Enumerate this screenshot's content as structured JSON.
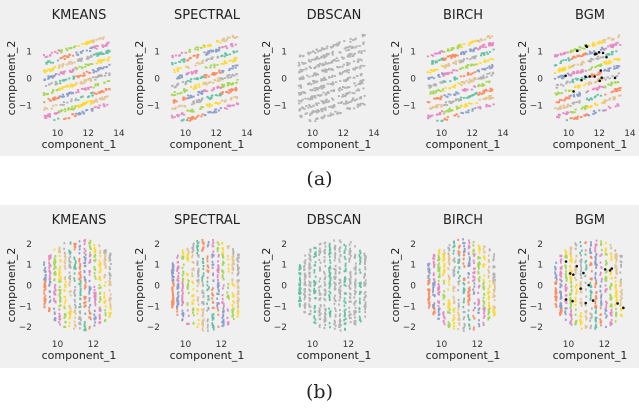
{
  "figure": {
    "captions": [
      "(a)",
      "(b)"
    ]
  },
  "chart_data": [
    {
      "type": "scatter",
      "row": "a",
      "title": "KMEANS",
      "xlabel": "component_1",
      "ylabel": "component_2",
      "x_ticks": [
        10,
        12,
        14
      ],
      "y_ticks": [
        1,
        0,
        -1
      ],
      "xlim": [
        8.6,
        14.2
      ],
      "ylim": [
        -1.7,
        1.7
      ],
      "palette": [
        "#66c2a5",
        "#fc8d62",
        "#8da0cb",
        "#e78ac3",
        "#a6d854",
        "#ffd92f",
        "#e5c494",
        "#b3b3b3"
      ],
      "pattern": "diagonal-stripes",
      "num_clusters": 8,
      "centers_marked": false
    },
    {
      "type": "scatter",
      "row": "a",
      "title": "SPECTRAL",
      "xlabel": "component_1",
      "ylabel": "component_2",
      "x_ticks": [
        10,
        12,
        14
      ],
      "y_ticks": [
        1,
        0,
        -1
      ],
      "xlim": [
        8.6,
        14.2
      ],
      "ylim": [
        -1.7,
        1.7
      ],
      "palette": [
        "#66c2a5",
        "#fc8d62",
        "#8da0cb",
        "#e78ac3",
        "#a6d854",
        "#ffd92f",
        "#e5c494",
        "#b3b3b3"
      ],
      "pattern": "diagonal-stripes",
      "num_clusters": 8,
      "centers_marked": false
    },
    {
      "type": "scatter",
      "row": "a",
      "title": "DBSCAN",
      "xlabel": "component_1",
      "ylabel": "component_2",
      "x_ticks": [
        10,
        12,
        14
      ],
      "y_ticks": [
        1,
        0,
        -1
      ],
      "xlim": [
        8.6,
        14.2
      ],
      "ylim": [
        -1.7,
        1.7
      ],
      "palette": [
        "#b3b3b3"
      ],
      "pattern": "diagonal-stripes",
      "num_clusters": 1,
      "centers_marked": false
    },
    {
      "type": "scatter",
      "row": "a",
      "title": "BIRCH",
      "xlabel": "component_1",
      "ylabel": "component_2",
      "x_ticks": [
        10,
        12,
        14
      ],
      "y_ticks": [
        1,
        0,
        -1
      ],
      "xlim": [
        8.6,
        14.2
      ],
      "ylim": [
        -1.7,
        1.7
      ],
      "palette": [
        "#66c2a5",
        "#fc8d62",
        "#8da0cb",
        "#e78ac3",
        "#a6d854",
        "#ffd92f",
        "#e5c494",
        "#b3b3b3"
      ],
      "pattern": "diagonal-stripes",
      "num_clusters": 8,
      "centers_marked": false
    },
    {
      "type": "scatter",
      "row": "a",
      "title": "BGM",
      "xlabel": "component_1",
      "ylabel": "component_2",
      "x_ticks": [
        10,
        12,
        14
      ],
      "y_ticks": [
        1,
        0,
        -1
      ],
      "xlim": [
        8.6,
        14.2
      ],
      "ylim": [
        -1.7,
        1.7
      ],
      "palette": [
        "#66c2a5",
        "#fc8d62",
        "#8da0cb",
        "#e78ac3",
        "#a6d854",
        "#ffd92f",
        "#e5c494",
        "#b3b3b3"
      ],
      "pattern": "diagonal-stripes",
      "num_clusters": 8,
      "centers_marked": true
    },
    {
      "type": "scatter",
      "row": "b",
      "title": "KMEANS",
      "xlabel": "component_1",
      "ylabel": "component_2",
      "x_ticks": [
        10,
        12
      ],
      "y_ticks": [
        2,
        1,
        0,
        -1,
        -2
      ],
      "xlim": [
        8.8,
        13.6
      ],
      "ylim": [
        -2.4,
        2.4
      ],
      "palette": [
        "#66c2a5",
        "#fc8d62",
        "#8da0cb",
        "#e78ac3",
        "#a6d854",
        "#ffd92f",
        "#e5c494",
        "#b3b3b3"
      ],
      "pattern": "vertical-stripes",
      "num_clusters": 8,
      "centers_marked": false
    },
    {
      "type": "scatter",
      "row": "b",
      "title": "SPECTRAL",
      "xlabel": "component_1",
      "ylabel": "component_2",
      "x_ticks": [
        10,
        12
      ],
      "y_ticks": [
        2,
        1,
        0,
        -1,
        -2
      ],
      "xlim": [
        8.8,
        13.6
      ],
      "ylim": [
        -2.4,
        2.4
      ],
      "palette": [
        "#66c2a5",
        "#fc8d62",
        "#8da0cb",
        "#e78ac3",
        "#a6d854",
        "#ffd92f",
        "#e5c494",
        "#b3b3b3"
      ],
      "pattern": "vertical-stripes",
      "num_clusters": 8,
      "centers_marked": false
    },
    {
      "type": "scatter",
      "row": "b",
      "title": "DBSCAN",
      "xlabel": "component_1",
      "ylabel": "component_2",
      "x_ticks": [
        10,
        12
      ],
      "y_ticks": [
        2,
        1,
        0,
        -1,
        -2
      ],
      "xlim": [
        8.8,
        13.6
      ],
      "ylim": [
        -2.4,
        2.4
      ],
      "palette": [
        "#b3b3b3",
        "#66c2a5"
      ],
      "pattern": "vertical-stripes",
      "num_clusters": 2,
      "centers_marked": false
    },
    {
      "type": "scatter",
      "row": "b",
      "title": "BIRCH",
      "xlabel": "component_1",
      "ylabel": "component_2",
      "x_ticks": [
        10,
        12
      ],
      "y_ticks": [
        2,
        1,
        0,
        -1,
        -2
      ],
      "xlim": [
        8.8,
        13.6
      ],
      "ylim": [
        -2.4,
        2.4
      ],
      "palette": [
        "#66c2a5",
        "#fc8d62",
        "#8da0cb",
        "#e78ac3",
        "#a6d854",
        "#ffd92f",
        "#e5c494",
        "#b3b3b3"
      ],
      "pattern": "vertical-stripes",
      "num_clusters": 8,
      "centers_marked": false
    },
    {
      "type": "scatter",
      "row": "b",
      "title": "BGM",
      "xlabel": "component_1",
      "ylabel": "component_2",
      "x_ticks": [
        10,
        12
      ],
      "y_ticks": [
        2,
        1,
        0,
        -1,
        -2
      ],
      "xlim": [
        8.8,
        13.6
      ],
      "ylim": [
        -2.4,
        2.4
      ],
      "palette": [
        "#66c2a5",
        "#fc8d62",
        "#8da0cb",
        "#e78ac3",
        "#a6d854",
        "#ffd92f",
        "#e5c494",
        "#b3b3b3"
      ],
      "pattern": "vertical-stripes",
      "num_clusters": 8,
      "centers_marked": true
    }
  ]
}
